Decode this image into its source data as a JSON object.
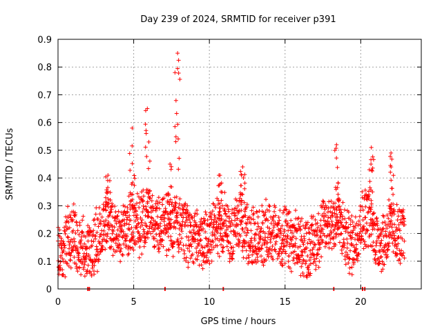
{
  "chart_data": {
    "type": "scatter",
    "title": "Day 239 of 2024, SRMTID for receiver p391",
    "xlabel": "GPS time / hours",
    "ylabel": "SRMTID / TECUs",
    "xlim": [
      0,
      24
    ],
    "ylim": [
      0,
      0.9
    ],
    "x_ticks": [
      0,
      5,
      10,
      15,
      20
    ],
    "x_tick_labels": [
      "0",
      "5",
      "10",
      "15",
      "20"
    ],
    "y_ticks": [
      0,
      0.1,
      0.2,
      0.3,
      0.4,
      0.5,
      0.6,
      0.7,
      0.8,
      0.9
    ],
    "y_tick_labels": [
      "0",
      "0.1",
      "0.2",
      "0.3",
      "0.4",
      "0.5",
      "0.6",
      "0.7",
      "0.8",
      "0.9"
    ],
    "grid": true,
    "marker": "+",
    "color": "#ff0000",
    "series": [
      {
        "name": "SRMTID",
        "profile": [
          {
            "x": 0.0,
            "y": 0.17
          },
          {
            "x": 0.3,
            "y": 0.11
          },
          {
            "x": 0.6,
            "y": 0.18
          },
          {
            "x": 1.0,
            "y": 0.2
          },
          {
            "x": 1.5,
            "y": 0.15
          },
          {
            "x": 2.0,
            "y": 0.13
          },
          {
            "x": 2.5,
            "y": 0.17
          },
          {
            "x": 3.0,
            "y": 0.22
          },
          {
            "x": 3.3,
            "y": 0.27
          },
          {
            "x": 3.7,
            "y": 0.22
          },
          {
            "x": 4.2,
            "y": 0.19
          },
          {
            "x": 4.8,
            "y": 0.24
          },
          {
            "x": 5.5,
            "y": 0.23
          },
          {
            "x": 6.0,
            "y": 0.27
          },
          {
            "x": 6.5,
            "y": 0.24
          },
          {
            "x": 7.0,
            "y": 0.23
          },
          {
            "x": 7.5,
            "y": 0.22
          },
          {
            "x": 8.0,
            "y": 0.24
          },
          {
            "x": 8.5,
            "y": 0.2
          },
          {
            "x": 9.0,
            "y": 0.18
          },
          {
            "x": 9.5,
            "y": 0.17
          },
          {
            "x": 10.0,
            "y": 0.19
          },
          {
            "x": 10.5,
            "y": 0.22
          },
          {
            "x": 11.0,
            "y": 0.24
          },
          {
            "x": 11.5,
            "y": 0.2
          },
          {
            "x": 12.0,
            "y": 0.26
          },
          {
            "x": 12.5,
            "y": 0.2
          },
          {
            "x": 13.0,
            "y": 0.18
          },
          {
            "x": 13.5,
            "y": 0.19
          },
          {
            "x": 14.0,
            "y": 0.21
          },
          {
            "x": 14.5,
            "y": 0.19
          },
          {
            "x": 15.0,
            "y": 0.18
          },
          {
            "x": 15.5,
            "y": 0.17
          },
          {
            "x": 16.0,
            "y": 0.16
          },
          {
            "x": 16.5,
            "y": 0.15
          },
          {
            "x": 17.0,
            "y": 0.17
          },
          {
            "x": 17.5,
            "y": 0.22
          },
          {
            "x": 18.0,
            "y": 0.24
          },
          {
            "x": 18.5,
            "y": 0.25
          },
          {
            "x": 19.0,
            "y": 0.18
          },
          {
            "x": 19.5,
            "y": 0.16
          },
          {
            "x": 20.0,
            "y": 0.24
          },
          {
            "x": 20.5,
            "y": 0.27
          },
          {
            "x": 21.0,
            "y": 0.18
          },
          {
            "x": 21.5,
            "y": 0.17
          },
          {
            "x": 22.0,
            "y": 0.22
          },
          {
            "x": 22.5,
            "y": 0.19
          },
          {
            "x": 22.9,
            "y": 0.19
          }
        ],
        "spikes": [
          {
            "x": 3.3,
            "y": 0.41
          },
          {
            "x": 4.9,
            "y": 0.58
          },
          {
            "x": 5.9,
            "y": 0.65
          },
          {
            "x": 7.4,
            "y": 0.45
          },
          {
            "x": 7.9,
            "y": 0.85
          },
          {
            "x": 10.7,
            "y": 0.41
          },
          {
            "x": 12.2,
            "y": 0.44
          },
          {
            "x": 18.4,
            "y": 0.52
          },
          {
            "x": 20.7,
            "y": 0.51
          },
          {
            "x": 22.0,
            "y": 0.49
          }
        ],
        "zero_markers_x": [
          1.95,
          2.05,
          7.05,
          10.9,
          18.2,
          20.1,
          20.25
        ],
        "x_range": [
          0,
          22.9
        ],
        "approx_point_count": 2000
      }
    ]
  }
}
